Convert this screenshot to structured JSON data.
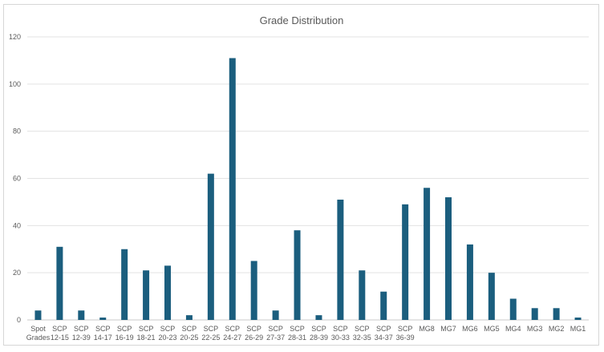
{
  "chart_data": {
    "type": "bar",
    "title": "Grade Distribution",
    "xlabel": "",
    "ylabel": "",
    "ylim": [
      0,
      120
    ],
    "yticks": [
      0,
      20,
      40,
      60,
      80,
      100,
      120
    ],
    "grid": true,
    "legend": "none",
    "bar_color": "#1b5e7e",
    "categories": [
      [
        "Spot",
        "Grades"
      ],
      [
        "SCP",
        "12-15"
      ],
      [
        "SCP",
        "12-39"
      ],
      [
        "SCP",
        "14-17"
      ],
      [
        "SCP",
        "16-19"
      ],
      [
        "SCP",
        "18-21"
      ],
      [
        "SCP",
        "20-23"
      ],
      [
        "SCP",
        "20-25"
      ],
      [
        "SCP",
        "22-25"
      ],
      [
        "SCP",
        "24-27"
      ],
      [
        "SCP",
        "26-29"
      ],
      [
        "SCP",
        "27-37"
      ],
      [
        "SCP",
        "28-31"
      ],
      [
        "SCP",
        "28-39"
      ],
      [
        "SCP",
        "30-33"
      ],
      [
        "SCP",
        "32-35"
      ],
      [
        "SCP",
        "34-37"
      ],
      [
        "SCP",
        "36-39"
      ],
      [
        "MG8"
      ],
      [
        "MG7"
      ],
      [
        "MG6"
      ],
      [
        "MG5"
      ],
      [
        "MG4"
      ],
      [
        "MG3"
      ],
      [
        "MG2"
      ],
      [
        "MG1"
      ]
    ],
    "values": [
      4,
      31,
      4,
      1,
      30,
      21,
      23,
      2,
      62,
      111,
      25,
      4,
      38,
      2,
      51,
      21,
      12,
      49,
      56,
      52,
      32,
      20,
      9,
      5,
      5,
      1
    ]
  }
}
